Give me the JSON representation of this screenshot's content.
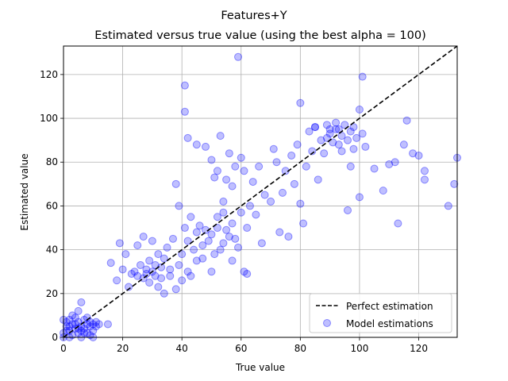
{
  "chart_data": {
    "type": "scatter",
    "suptitle": "Features+Y",
    "title": "Estimated versus true value (using the best alpha = 100)",
    "xlabel": "True value",
    "ylabel": "Estimated value",
    "xlim": [
      0,
      133
    ],
    "ylim": [
      0,
      133
    ],
    "xticks": [
      0,
      20,
      40,
      60,
      80,
      100,
      120
    ],
    "yticks": [
      0,
      20,
      40,
      60,
      80,
      100,
      120
    ],
    "grid": true,
    "legend": {
      "placement": "lower-right",
      "entries": [
        "Perfect estimation",
        "Model estimations"
      ]
    },
    "colors": {
      "line": "#000000",
      "points": "#0000ff"
    },
    "series": [
      {
        "name": "Perfect estimation",
        "kind": "line",
        "style": "dashed",
        "x": [
          0,
          133
        ],
        "y": [
          0,
          133
        ]
      },
      {
        "name": "Model estimations",
        "kind": "scatter",
        "points": [
          [
            0,
            2
          ],
          [
            1,
            5
          ],
          [
            1,
            7
          ],
          [
            2,
            3
          ],
          [
            2,
            8
          ],
          [
            3,
            1
          ],
          [
            3,
            6
          ],
          [
            4,
            9
          ],
          [
            4,
            4
          ],
          [
            5,
            2
          ],
          [
            5,
            7
          ],
          [
            5,
            12
          ],
          [
            6,
            5
          ],
          [
            6,
            3
          ],
          [
            6,
            16
          ],
          [
            7,
            8
          ],
          [
            7,
            4
          ],
          [
            8,
            6
          ],
          [
            8,
            2
          ],
          [
            9,
            7
          ],
          [
            9,
            5
          ],
          [
            10,
            3
          ],
          [
            10,
            6
          ],
          [
            11,
            5
          ],
          [
            12,
            6
          ],
          [
            15,
            6
          ],
          [
            0,
            0
          ],
          [
            2,
            0
          ],
          [
            6,
            0
          ],
          [
            9,
            1
          ],
          [
            10,
            0
          ],
          [
            3,
            10
          ],
          [
            1,
            3
          ],
          [
            4,
            6
          ],
          [
            7,
            2
          ],
          [
            8,
            9
          ],
          [
            5,
            4
          ],
          [
            2,
            5
          ],
          [
            11,
            7
          ],
          [
            0,
            8
          ],
          [
            16,
            34
          ],
          [
            18,
            26
          ],
          [
            19,
            43
          ],
          [
            20,
            31
          ],
          [
            21,
            38
          ],
          [
            22,
            23
          ],
          [
            23,
            29
          ],
          [
            24,
            30
          ],
          [
            25,
            28
          ],
          [
            25,
            42
          ],
          [
            26,
            33
          ],
          [
            27,
            27
          ],
          [
            27,
            46
          ],
          [
            28,
            31
          ],
          [
            28,
            29
          ],
          [
            29,
            25
          ],
          [
            29,
            35
          ],
          [
            30,
            30
          ],
          [
            30,
            44
          ],
          [
            31,
            28
          ],
          [
            31,
            33
          ],
          [
            32,
            38
          ],
          [
            32,
            23
          ],
          [
            33,
            32
          ],
          [
            33,
            27
          ],
          [
            34,
            36
          ],
          [
            34,
            20
          ],
          [
            35,
            41
          ],
          [
            36,
            28
          ],
          [
            36,
            31
          ],
          [
            37,
            45
          ],
          [
            38,
            22
          ],
          [
            39,
            33
          ],
          [
            39,
            60
          ],
          [
            40,
            26
          ],
          [
            40,
            38
          ],
          [
            41,
            50
          ],
          [
            42,
            44
          ],
          [
            42,
            30
          ],
          [
            43,
            28
          ],
          [
            43,
            55
          ],
          [
            44,
            40
          ],
          [
            45,
            48
          ],
          [
            45,
            35
          ],
          [
            46,
            51
          ],
          [
            47,
            42
          ],
          [
            47,
            36
          ],
          [
            48,
            49
          ],
          [
            49,
            44
          ],
          [
            50,
            47
          ],
          [
            50,
            30
          ],
          [
            51,
            38
          ],
          [
            52,
            50
          ],
          [
            52,
            55
          ],
          [
            53,
            40
          ],
          [
            54,
            43
          ],
          [
            54,
            57
          ],
          [
            55,
            49
          ],
          [
            56,
            46
          ],
          [
            57,
            52
          ],
          [
            57,
            35
          ],
          [
            58,
            45
          ],
          [
            59,
            41
          ],
          [
            60,
            57
          ],
          [
            61,
            30
          ],
          [
            62,
            50
          ],
          [
            62,
            29
          ],
          [
            38,
            70
          ],
          [
            41,
            103
          ],
          [
            41,
            115
          ],
          [
            42,
            91
          ],
          [
            45,
            88
          ],
          [
            48,
            87
          ],
          [
            50,
            81
          ],
          [
            51,
            73
          ],
          [
            52,
            76
          ],
          [
            53,
            92
          ],
          [
            54,
            62
          ],
          [
            55,
            72
          ],
          [
            56,
            84
          ],
          [
            57,
            69
          ],
          [
            58,
            78
          ],
          [
            59,
            128
          ],
          [
            60,
            82
          ],
          [
            61,
            76
          ],
          [
            63,
            60
          ],
          [
            64,
            71
          ],
          [
            65,
            56
          ],
          [
            66,
            78
          ],
          [
            67,
            43
          ],
          [
            68,
            65
          ],
          [
            70,
            62
          ],
          [
            71,
            86
          ],
          [
            72,
            80
          ],
          [
            73,
            48
          ],
          [
            74,
            66
          ],
          [
            75,
            76
          ],
          [
            76,
            46
          ],
          [
            77,
            83
          ],
          [
            78,
            70
          ],
          [
            79,
            88
          ],
          [
            80,
            61
          ],
          [
            80,
            107
          ],
          [
            81,
            52
          ],
          [
            82,
            78
          ],
          [
            83,
            94
          ],
          [
            84,
            85
          ],
          [
            85,
            96
          ],
          [
            86,
            72
          ],
          [
            87,
            90
          ],
          [
            88,
            84
          ],
          [
            89,
            97
          ],
          [
            90,
            93
          ],
          [
            91,
            89
          ],
          [
            92,
            95
          ],
          [
            93,
            88
          ],
          [
            94,
            92
          ],
          [
            95,
            97
          ],
          [
            96,
            90
          ],
          [
            97,
            94
          ],
          [
            98,
            86
          ],
          [
            99,
            91
          ],
          [
            100,
            104
          ],
          [
            100,
            64
          ],
          [
            101,
            119
          ],
          [
            101,
            93
          ],
          [
            102,
            87
          ],
          [
            105,
            77
          ],
          [
            108,
            67
          ],
          [
            110,
            79
          ],
          [
            112,
            80
          ],
          [
            113,
            52
          ],
          [
            115,
            88
          ],
          [
            116,
            99
          ],
          [
            118,
            84
          ],
          [
            120,
            83
          ],
          [
            122,
            72
          ],
          [
            122,
            76
          ],
          [
            130,
            60
          ],
          [
            132,
            70
          ],
          [
            133,
            82
          ],
          [
            85,
            96
          ],
          [
            90,
            95
          ],
          [
            92,
            98
          ],
          [
            94,
            85
          ],
          [
            96,
            58
          ],
          [
            97,
            78
          ],
          [
            98,
            96
          ],
          [
            93,
            95
          ],
          [
            89,
            91
          ]
        ]
      }
    ]
  }
}
